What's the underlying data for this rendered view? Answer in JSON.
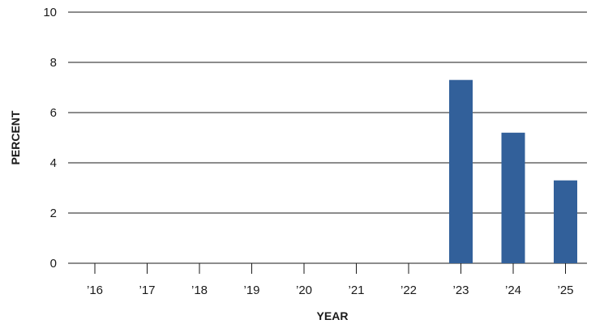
{
  "chart_data": {
    "type": "bar",
    "categories": [
      "’16",
      "’17",
      "’18",
      "’19",
      "’20",
      "’21",
      "’22",
      "’23",
      "’24",
      "’25"
    ],
    "values": [
      0,
      0,
      0,
      0,
      0,
      0,
      0,
      7.3,
      5.2,
      3.3
    ],
    "xlabel": "YEAR",
    "ylabel": "PERCENT",
    "ylim": [
      0,
      10
    ],
    "yticks": [
      0,
      2,
      4,
      6,
      8,
      10
    ],
    "grid": true,
    "bar_color": "#32609a",
    "line_color": "#1a1a1a"
  }
}
